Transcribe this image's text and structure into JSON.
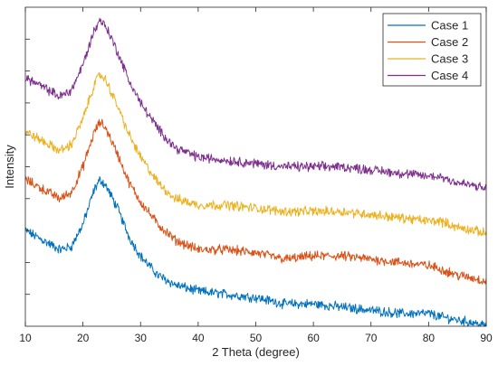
{
  "chart_data": {
    "type": "line",
    "title": "",
    "xlabel": "2 Theta (degree)",
    "ylabel": "Intensity",
    "xlim": [
      10,
      90
    ],
    "ylim": [
      0,
      1
    ],
    "x_ticks": [
      10,
      20,
      30,
      40,
      50,
      60,
      70,
      80,
      90
    ],
    "y_tick_labels": "none",
    "grid": false,
    "legend_position": "top-right",
    "noise_level": 0.012,
    "series": [
      {
        "name": "Case 1",
        "color": "#0072BD",
        "x": [
          10,
          13,
          16,
          18,
          20,
          22,
          23,
          24,
          26,
          28,
          30,
          33,
          36,
          40,
          45,
          50,
          55,
          60,
          65,
          70,
          75,
          80,
          82,
          85,
          88,
          90
        ],
        "y": [
          0.3,
          0.27,
          0.24,
          0.25,
          0.32,
          0.43,
          0.46,
          0.44,
          0.37,
          0.28,
          0.22,
          0.16,
          0.13,
          0.11,
          0.1,
          0.09,
          0.07,
          0.07,
          0.06,
          0.05,
          0.04,
          0.04,
          0.03,
          0.02,
          0.01,
          0.0
        ]
      },
      {
        "name": "Case 2",
        "color": "#D95319",
        "x": [
          10,
          13,
          16,
          18,
          20,
          22,
          23,
          24,
          26,
          28,
          30,
          33,
          36,
          40,
          45,
          50,
          55,
          60,
          65,
          70,
          75,
          80,
          82,
          85,
          88,
          90
        ],
        "y": [
          0.46,
          0.43,
          0.4,
          0.42,
          0.5,
          0.61,
          0.64,
          0.62,
          0.54,
          0.45,
          0.39,
          0.32,
          0.27,
          0.24,
          0.24,
          0.23,
          0.21,
          0.22,
          0.22,
          0.21,
          0.2,
          0.19,
          0.18,
          0.16,
          0.15,
          0.14
        ]
      },
      {
        "name": "Case 3",
        "color": "#EDB120",
        "x": [
          10,
          13,
          16,
          18,
          20,
          22,
          23,
          24,
          26,
          28,
          30,
          33,
          36,
          40,
          45,
          50,
          55,
          60,
          65,
          70,
          75,
          80,
          82,
          85,
          88,
          90
        ],
        "y": [
          0.61,
          0.58,
          0.55,
          0.57,
          0.65,
          0.76,
          0.79,
          0.77,
          0.69,
          0.6,
          0.53,
          0.45,
          0.4,
          0.38,
          0.38,
          0.37,
          0.36,
          0.36,
          0.36,
          0.35,
          0.34,
          0.33,
          0.33,
          0.31,
          0.3,
          0.29
        ]
      },
      {
        "name": "Case 4",
        "color": "#7E2F8E",
        "x": [
          10,
          13,
          16,
          18,
          20,
          22,
          23,
          24,
          26,
          28,
          30,
          33,
          36,
          40,
          45,
          50,
          55,
          60,
          65,
          70,
          75,
          80,
          82,
          85,
          88,
          90
        ],
        "y": [
          0.78,
          0.75,
          0.72,
          0.74,
          0.82,
          0.93,
          0.96,
          0.94,
          0.86,
          0.77,
          0.7,
          0.62,
          0.56,
          0.53,
          0.52,
          0.51,
          0.5,
          0.5,
          0.5,
          0.49,
          0.48,
          0.47,
          0.47,
          0.45,
          0.44,
          0.43
        ]
      }
    ]
  }
}
